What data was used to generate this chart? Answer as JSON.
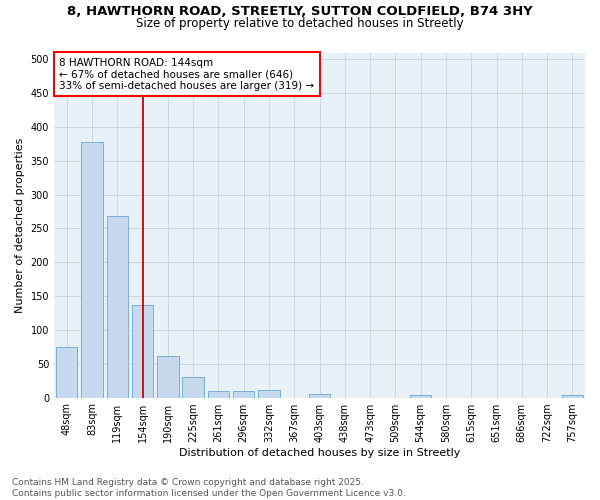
{
  "title_line1": "8, HAWTHORN ROAD, STREETLY, SUTTON COLDFIELD, B74 3HY",
  "title_line2": "Size of property relative to detached houses in Streetly",
  "xlabel": "Distribution of detached houses by size in Streetly",
  "ylabel": "Number of detached properties",
  "categories": [
    "48sqm",
    "83sqm",
    "119sqm",
    "154sqm",
    "190sqm",
    "225sqm",
    "261sqm",
    "296sqm",
    "332sqm",
    "367sqm",
    "403sqm",
    "438sqm",
    "473sqm",
    "509sqm",
    "544sqm",
    "580sqm",
    "615sqm",
    "651sqm",
    "686sqm",
    "722sqm",
    "757sqm"
  ],
  "values": [
    75,
    378,
    268,
    137,
    62,
    31,
    10,
    10,
    11,
    0,
    5,
    0,
    0,
    0,
    4,
    0,
    0,
    0,
    0,
    0,
    4
  ],
  "bar_color": "#c6d9ee",
  "bar_edge_color": "#7aafd4",
  "vline_color": "#cc0000",
  "vline_x": 3,
  "annotation_text": "8 HAWTHORN ROAD: 144sqm\n← 67% of detached houses are smaller (646)\n33% of semi-detached houses are larger (319) →",
  "ylim": [
    0,
    510
  ],
  "yticks": [
    0,
    50,
    100,
    150,
    200,
    250,
    300,
    350,
    400,
    450,
    500
  ],
  "grid_color": "#c8d4e0",
  "background_color": "#e8f0f8",
  "footer_line1": "Contains HM Land Registry data © Crown copyright and database right 2025.",
  "footer_line2": "Contains public sector information licensed under the Open Government Licence v3.0.",
  "title_fontsize": 9.5,
  "subtitle_fontsize": 8.5,
  "axis_label_fontsize": 8,
  "tick_fontsize": 7,
  "annotation_fontsize": 7.5,
  "footer_fontsize": 6.5
}
